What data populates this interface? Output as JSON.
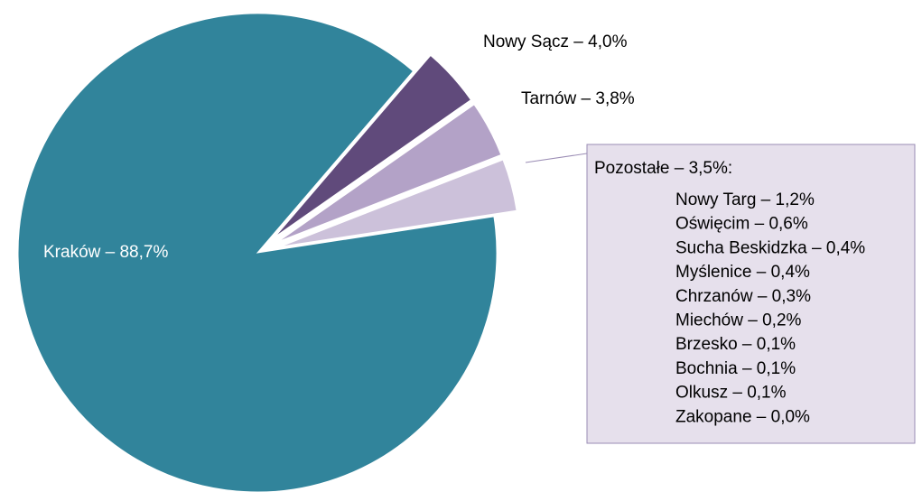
{
  "chart_data": {
    "type": "pie",
    "values": [
      88.7,
      4.0,
      3.8,
      3.5
    ],
    "value_labels": [
      "Kraków – 88,7%",
      "Nowy Sącz – 4,0%",
      "Tarnów – 3,8%",
      "Pozostałe – 3,5%:"
    ],
    "colors": [
      "#31849b",
      "#604a7b",
      "#b3a2c7",
      "#ccc1da"
    ],
    "breakdown": {
      "values": [
        1.2,
        0.6,
        0.4,
        0.4,
        0.3,
        0.2,
        0.1,
        0.1,
        0.1,
        0.0
      ],
      "value_labels": [
        "Nowy Targ – 1,2%",
        "Oświęcim – 0,6%",
        "Sucha Beskidzka – 0,4%",
        "Myślenice – 0,4%",
        "Chrzanów – 0,3%",
        "Miechów – 0,2%",
        "Brzesko – 0,1%",
        "Bochnia – 0,1%",
        "Olkusz – 0,1%",
        "Zakopane – 0,0%"
      ]
    }
  }
}
